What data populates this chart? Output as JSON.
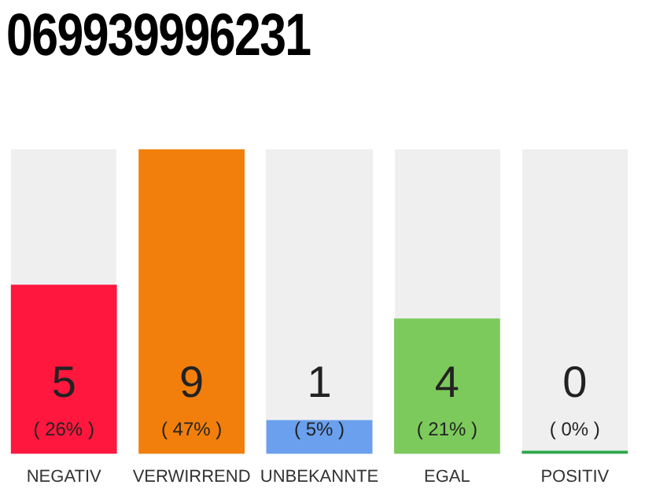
{
  "chart_data": {
    "type": "bar",
    "title": "069939996231",
    "categories": [
      "NEGATIV",
      "VERWIRREND",
      "UNBEKANNTE",
      "EGAL",
      "POSITIV"
    ],
    "values": [
      5,
      9,
      1,
      4,
      0
    ],
    "colors": [
      "#ff173d",
      "#f27f0c",
      "#6aa0ee",
      "#7dca5c",
      "#2ca84a"
    ],
    "ylim": [
      0,
      9
    ],
    "data_labels": true,
    "grid": false,
    "legend": false,
    "tick_labels": "x",
    "annotations": [
      "( 26% )",
      "( 47% )",
      "( 5% )",
      "( 21% )",
      "( 0% )"
    ]
  }
}
